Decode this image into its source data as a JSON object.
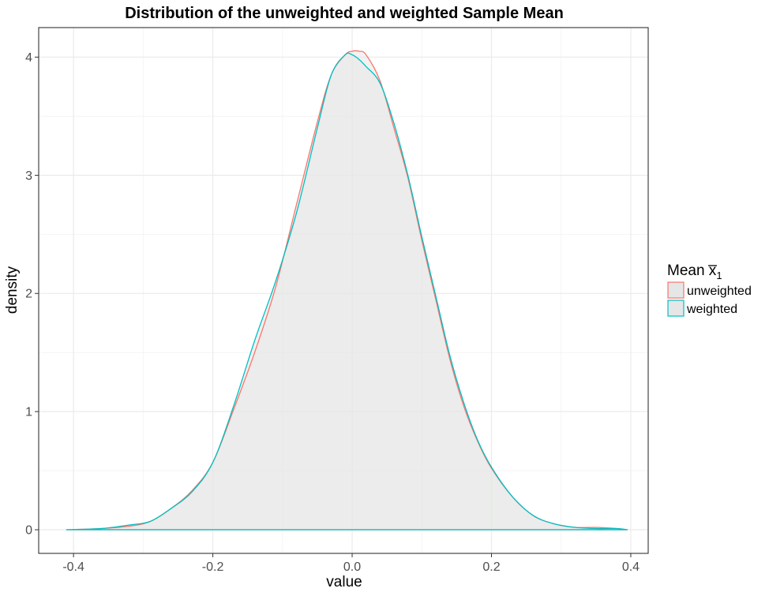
{
  "chart_data": {
    "type": "area",
    "title": "Distribution of the unweighted and weighted Sample Mean",
    "xlabel": "value",
    "ylabel": "density",
    "xlim": [
      -0.45,
      0.425
    ],
    "ylim": [
      -0.2,
      4.25
    ],
    "x_ticks": [
      -0.4,
      -0.2,
      0.0,
      0.2,
      0.4
    ],
    "x_tick_labels": [
      "-0.4",
      "-0.2",
      "0.0",
      "0.2",
      "0.4"
    ],
    "y_ticks": [
      0,
      1,
      2,
      3,
      4
    ],
    "y_tick_labels": [
      "0",
      "1",
      "2",
      "3",
      "4"
    ],
    "grid": true,
    "legend": {
      "title": "Mean x̅",
      "title_subscript": "1",
      "position": "right",
      "entries": [
        "unweighted",
        "weighted"
      ]
    },
    "fill_color": "#e5e7e6",
    "series": [
      {
        "name": "unweighted",
        "color": "#F8766D",
        "x": [
          -0.41,
          -0.36,
          -0.32,
          -0.29,
          -0.26,
          -0.23,
          -0.2,
          -0.17,
          -0.14,
          -0.11,
          -0.08,
          -0.05,
          -0.03,
          -0.01,
          0.0,
          0.01,
          0.02,
          0.04,
          0.06,
          0.08,
          0.1,
          0.12,
          0.14,
          0.16,
          0.18,
          0.2,
          0.23,
          0.26,
          0.29,
          0.32,
          0.35,
          0.38,
          0.395
        ],
        "y": [
          0.0,
          0.01,
          0.03,
          0.07,
          0.18,
          0.33,
          0.57,
          1.02,
          1.5,
          2.05,
          2.75,
          3.45,
          3.85,
          4.02,
          4.05,
          4.05,
          4.02,
          3.8,
          3.4,
          2.98,
          2.45,
          1.95,
          1.45,
          1.05,
          0.75,
          0.52,
          0.28,
          0.12,
          0.05,
          0.02,
          0.02,
          0.01,
          0.0
        ]
      },
      {
        "name": "weighted",
        "color": "#00BFC4",
        "x": [
          -0.41,
          -0.36,
          -0.32,
          -0.29,
          -0.26,
          -0.23,
          -0.2,
          -0.17,
          -0.14,
          -0.11,
          -0.08,
          -0.05,
          -0.03,
          -0.01,
          0.0,
          0.01,
          0.02,
          0.04,
          0.06,
          0.08,
          0.1,
          0.12,
          0.14,
          0.16,
          0.18,
          0.2,
          0.23,
          0.26,
          0.29,
          0.32,
          0.35,
          0.38,
          0.395
        ],
        "y": [
          0.0,
          0.01,
          0.04,
          0.07,
          0.18,
          0.32,
          0.57,
          1.05,
          1.6,
          2.1,
          2.68,
          3.4,
          3.85,
          4.02,
          4.02,
          3.98,
          3.92,
          3.78,
          3.44,
          3.0,
          2.48,
          1.98,
          1.48,
          1.08,
          0.76,
          0.53,
          0.28,
          0.12,
          0.05,
          0.02,
          0.01,
          0.01,
          0.0
        ]
      }
    ]
  }
}
